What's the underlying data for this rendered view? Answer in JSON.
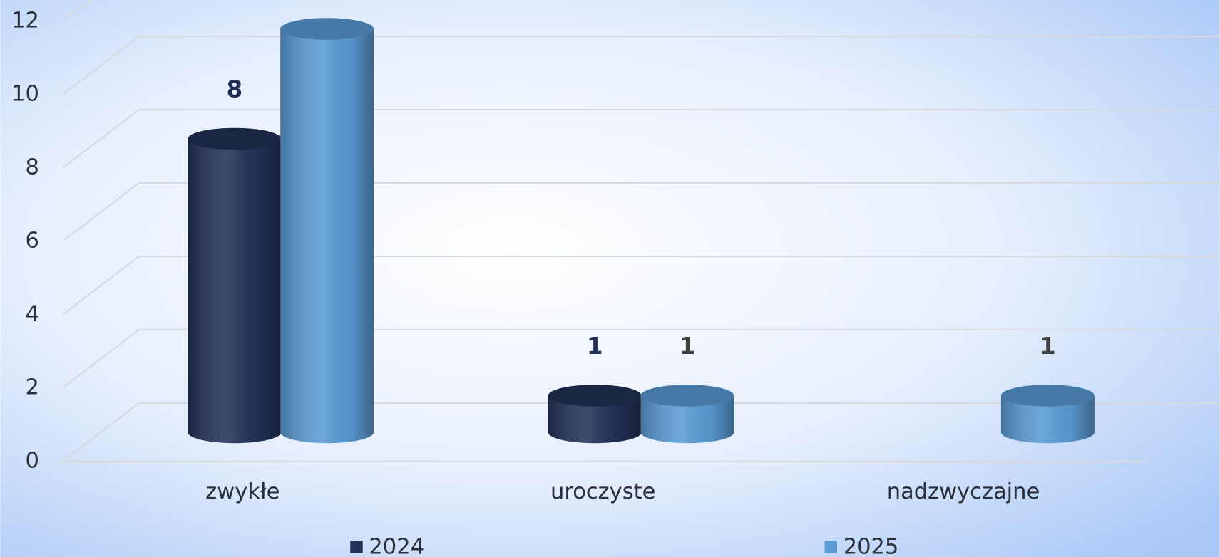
{
  "chart_data": {
    "type": "bar3d",
    "categories": [
      "zwykłe",
      "uroczyste",
      "nadzwyczajne"
    ],
    "series": [
      {
        "name": "2024",
        "color": "#233157",
        "values": [
          8,
          1,
          null
        ]
      },
      {
        "name": "2025",
        "color": "#5b9bd5",
        "values": [
          11,
          1,
          1
        ]
      }
    ],
    "ylim": [
      0,
      14
    ],
    "yticks": [
      0,
      2,
      4,
      6,
      8,
      10,
      12
    ],
    "grid": true,
    "legend": "bottom"
  }
}
